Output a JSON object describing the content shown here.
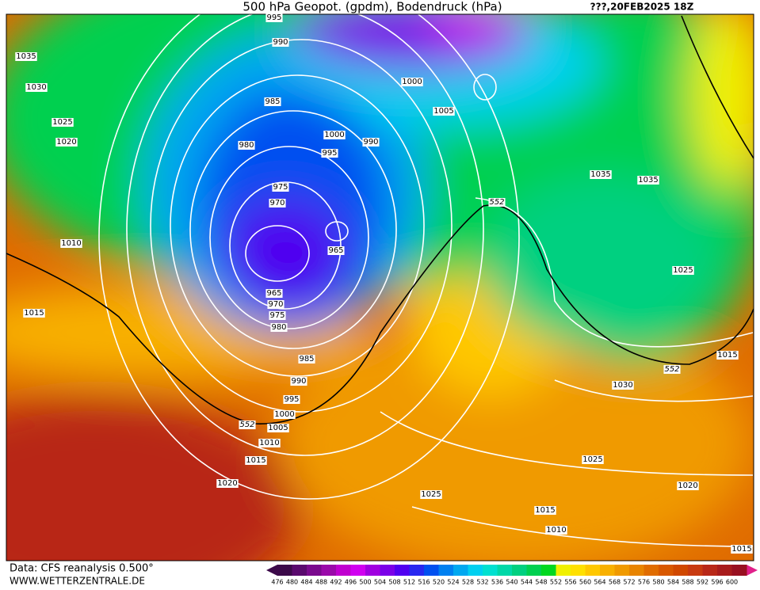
{
  "header": {
    "title": "500 hPa Geopot. (gpdm), Bodendruck (hPa)",
    "date": "???,20FEB2025 18Z"
  },
  "isobar_labels": [
    995,
    990,
    1035,
    1030,
    1025,
    1020,
    985,
    980,
    1000,
    1005,
    1000,
    995,
    990,
    975,
    970,
    965,
    965,
    970,
    975,
    980,
    985,
    990,
    995,
    1000,
    1005,
    1010,
    1015,
    1020,
    1010,
    1015,
    1035,
    1035,
    1025,
    1015,
    1030,
    1025,
    1025,
    1020,
    1015,
    1010,
    1015,
    552,
    552,
    552
  ],
  "colorbar": {
    "labels": [
      476,
      480,
      484,
      488,
      492,
      496,
      500,
      504,
      508,
      512,
      516,
      520,
      524,
      528,
      532,
      536,
      540,
      544,
      548,
      552,
      556,
      560,
      564,
      568,
      572,
      576,
      580,
      584,
      588,
      592,
      596,
      600
    ],
    "colors": [
      "#3c0a4a",
      "#5a0a6e",
      "#7a0a8e",
      "#9a0aaa",
      "#c000d0",
      "#d000f0",
      "#a000e0",
      "#7a00e8",
      "#5000f0",
      "#2828f0",
      "#0050f0",
      "#0080f0",
      "#00a8f0",
      "#00d0f0",
      "#00e0d0",
      "#00d8a8",
      "#00d080",
      "#00d050",
      "#00d820",
      "#f0f000",
      "#ffe000",
      "#ffc800",
      "#f8b000",
      "#f09a00",
      "#e88400",
      "#e06c00",
      "#d85800",
      "#d04800",
      "#c83a10",
      "#b82818",
      "#a81c1c",
      "#981020"
    ]
  },
  "footer": {
    "source": "Data: CFS reanalysis 0.500°",
    "site": "WWW.WETTERZENTRALE.DE"
  }
}
